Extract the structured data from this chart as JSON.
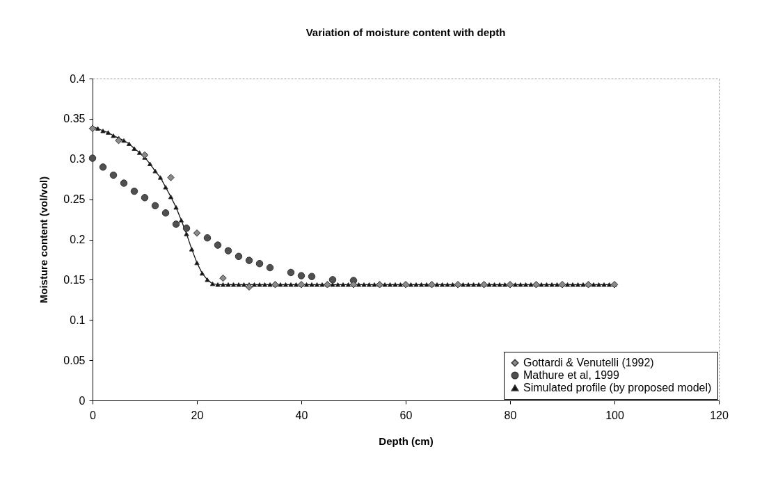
{
  "chart_data": {
    "type": "line",
    "title": "Variation of moisture content with depth",
    "xlabel": "Depth (cm)",
    "ylabel": "Moisture content (vol/vol)",
    "xlim": [
      0,
      120
    ],
    "xticks": [
      0,
      20,
      40,
      60,
      80,
      100,
      120
    ],
    "ylim": [
      0,
      0.4
    ],
    "yticks": [
      0,
      0.05,
      0.1,
      0.15,
      0.2,
      0.25,
      0.3,
      0.35,
      0.4
    ],
    "grid": false,
    "legend": "bottom right",
    "series": [
      {
        "name": "Gottardi & Venutelli (1992)",
        "type": "scatter",
        "marker": "diamond",
        "color": "#8a8a8a",
        "x": [
          0,
          5,
          10,
          15,
          20,
          25,
          30,
          35,
          40,
          45,
          50,
          55,
          60,
          65,
          70,
          75,
          80,
          85,
          90,
          95,
          100
        ],
        "values": [
          0.338,
          0.323,
          0.305,
          0.277,
          0.208,
          0.152,
          0.141,
          0.144,
          0.144,
          0.144,
          0.144,
          0.144,
          0.144,
          0.144,
          0.144,
          0.144,
          0.144,
          0.144,
          0.144,
          0.144,
          0.144
        ]
      },
      {
        "name": "Mathure et al, 1999",
        "type": "scatter",
        "marker": "circle",
        "color": "#505050",
        "x": [
          0,
          2,
          4,
          6,
          8,
          10,
          12,
          14,
          16,
          18,
          22,
          24,
          26,
          28,
          30,
          32,
          34,
          38,
          40,
          42,
          46,
          50
        ],
        "values": [
          0.301,
          0.29,
          0.28,
          0.27,
          0.26,
          0.252,
          0.242,
          0.233,
          0.219,
          0.214,
          0.202,
          0.193,
          0.186,
          0.179,
          0.174,
          0.17,
          0.165,
          0.159,
          0.155,
          0.154,
          0.15,
          0.149
        ]
      },
      {
        "name": "Simulated profile (by proposed model)",
        "type": "line",
        "marker": "triangle",
        "color": "#111111",
        "x": [
          0,
          1,
          2,
          3,
          4,
          5,
          6,
          7,
          8,
          9,
          10,
          11,
          12,
          13,
          14,
          15,
          16,
          17,
          18,
          19,
          20,
          21,
          22,
          23,
          24,
          25,
          26,
          27,
          28,
          29,
          30,
          31,
          32,
          33,
          34,
          35,
          36,
          37,
          38,
          39,
          40,
          41,
          42,
          43,
          44,
          45,
          46,
          47,
          48,
          49,
          50,
          51,
          52,
          53,
          54,
          55,
          56,
          57,
          58,
          59,
          60,
          61,
          62,
          63,
          64,
          65,
          66,
          67,
          68,
          69,
          70,
          71,
          72,
          73,
          74,
          75,
          76,
          77,
          78,
          79,
          80,
          81,
          82,
          83,
          84,
          85,
          86,
          87,
          88,
          89,
          90,
          91,
          92,
          93,
          94,
          95,
          96,
          97,
          98,
          99,
          100
        ],
        "values": [
          0.34,
          0.338,
          0.335,
          0.333,
          0.329,
          0.326,
          0.323,
          0.319,
          0.313,
          0.308,
          0.302,
          0.294,
          0.285,
          0.277,
          0.265,
          0.253,
          0.24,
          0.224,
          0.207,
          0.188,
          0.171,
          0.158,
          0.15,
          0.145,
          0.144,
          0.144,
          0.144,
          0.144,
          0.144,
          0.144,
          0.144,
          0.144,
          0.144,
          0.144,
          0.144,
          0.144,
          0.144,
          0.144,
          0.144,
          0.144,
          0.144,
          0.144,
          0.144,
          0.144,
          0.144,
          0.144,
          0.144,
          0.144,
          0.144,
          0.144,
          0.144,
          0.144,
          0.144,
          0.144,
          0.144,
          0.144,
          0.144,
          0.144,
          0.144,
          0.144,
          0.144,
          0.144,
          0.144,
          0.144,
          0.144,
          0.144,
          0.144,
          0.144,
          0.144,
          0.144,
          0.144,
          0.144,
          0.144,
          0.144,
          0.144,
          0.144,
          0.144,
          0.144,
          0.144,
          0.144,
          0.144,
          0.144,
          0.144,
          0.144,
          0.144,
          0.144,
          0.144,
          0.144,
          0.144,
          0.144,
          0.144,
          0.144,
          0.144,
          0.144,
          0.144,
          0.144,
          0.144,
          0.144,
          0.144,
          0.144,
          0.144
        ]
      }
    ]
  }
}
